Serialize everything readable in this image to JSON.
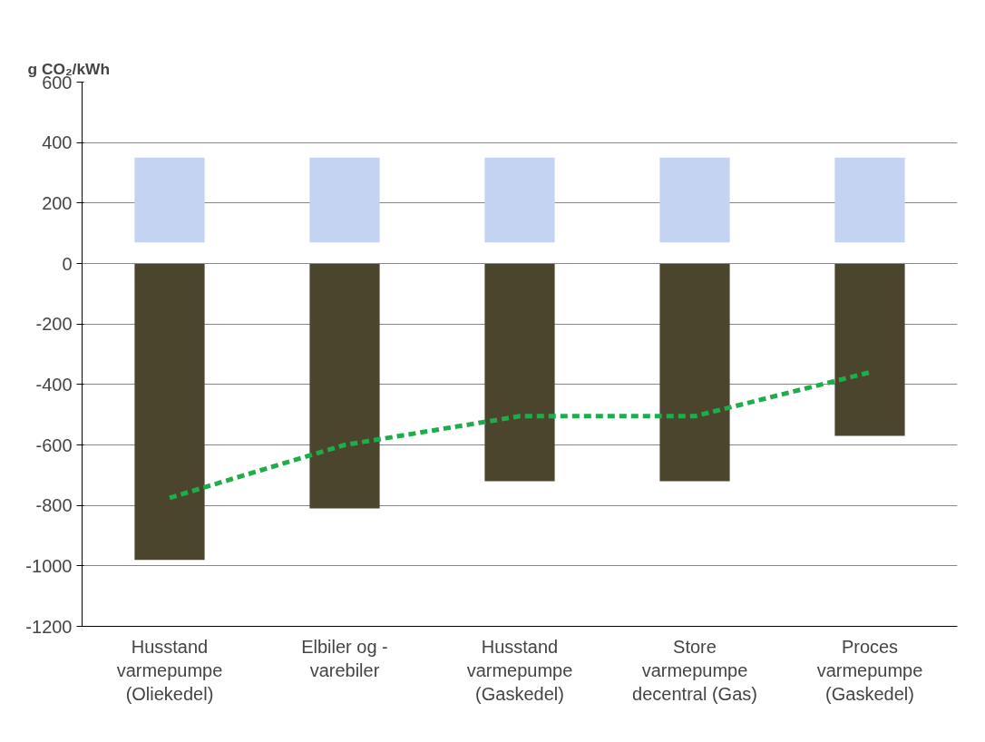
{
  "chart_data": {
    "type": "bar",
    "ylabel": "g CO₂/kWh",
    "categories": [
      "Husstand varmepumpe (Oliekedel)",
      "Elbiler og - varebiler",
      "Husstand varmepumpe (Gaskedel)",
      "Store varmepumpe decentral (Gas)",
      "Proces varmepumpe (Gaskedel)"
    ],
    "series": [
      {
        "color": "#c3d3f1",
        "base": [
          70,
          70,
          70,
          70,
          70
        ],
        "values": [
          280,
          280,
          280,
          280,
          280
        ]
      },
      {
        "color": "#4a452c",
        "values": [
          -980,
          -810,
          -720,
          -720,
          -570
        ]
      },
      {
        "type": "line",
        "color": "#1fad4c",
        "line_style": "dashed",
        "values": [
          -775,
          -600,
          -505,
          -505,
          -360
        ]
      }
    ],
    "ylim": [
      -1200,
      600
    ],
    "yticks": [
      -1200,
      -1000,
      -800,
      -600,
      -400,
      -200,
      0,
      200,
      400,
      600
    ],
    "grid": "y"
  }
}
